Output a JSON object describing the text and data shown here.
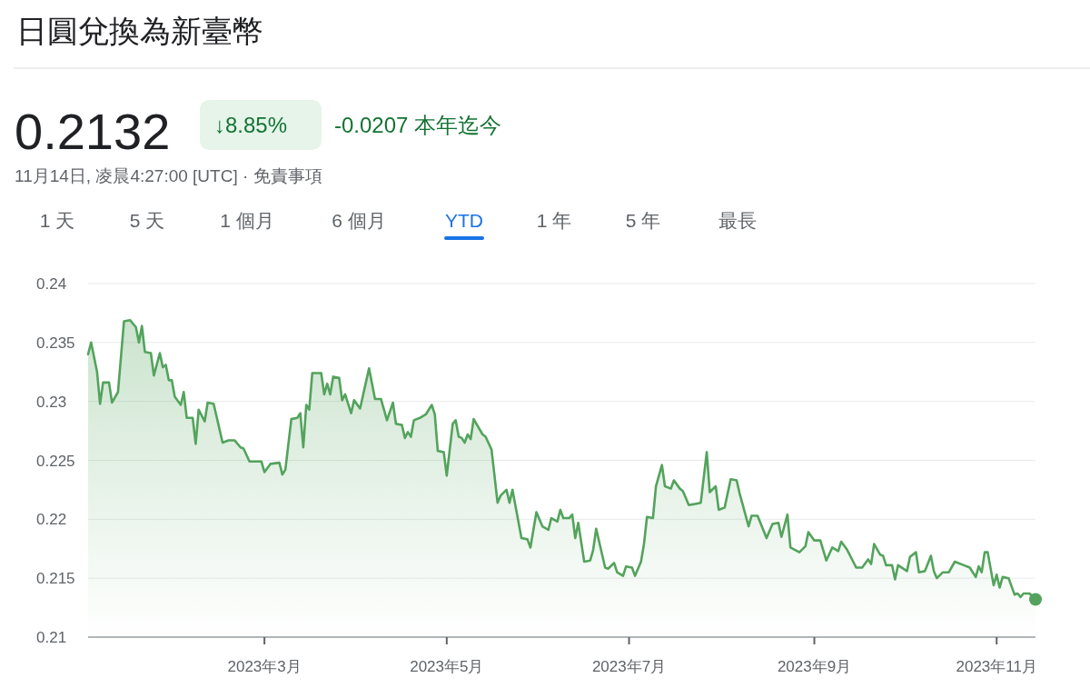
{
  "chart_data": {
    "type": "area",
    "title": "日圓兌換為新臺幣",
    "subtitle": "11月14日, 凌晨4:27:00 [UTC] · 免責事項",
    "annotations": [
      "0.2132",
      "↓8.85%",
      "-0.0207 本年迄今",
      "1 天",
      "5 天",
      "1 個月",
      "6 個月",
      "YTD",
      "1 年",
      "5 年",
      "最長"
    ],
    "xlim": [
      "2023-01-01",
      "2023-11-14"
    ],
    "xticks": [
      {
        "value": "2023-03-01",
        "label": "2023年3月"
      },
      {
        "value": "2023-05-01",
        "label": "2023年5月"
      },
      {
        "value": "2023-07-01",
        "label": "2023年7月"
      },
      {
        "value": "2023-09-01",
        "label": "2023年9月"
      },
      {
        "value": "2023-11-01",
        "label": "2023年11月"
      }
    ],
    "ylim": [
      0.21,
      0.24
    ],
    "yticks": [
      0.21,
      0.215,
      0.22,
      0.225,
      0.23,
      0.235,
      0.24
    ],
    "grid": "y",
    "marker": "none",
    "line_style": "solid",
    "series": [
      {
        "color": "#53a35c",
        "x": [
          "2023-01-01",
          "2023-01-02",
          "2023-01-04",
          "2023-01-05",
          "2023-01-06",
          "2023-01-08",
          "2023-01-09",
          "2023-01-11",
          "2023-01-13",
          "2023-01-15",
          "2023-01-17",
          "2023-01-18",
          "2023-01-19",
          "2023-01-20",
          "2023-01-22",
          "2023-01-23",
          "2023-01-25",
          "2023-01-26",
          "2023-01-27",
          "2023-01-28",
          "2023-01-29",
          "2023-01-30",
          "2023-02-01",
          "2023-02-02",
          "2023-02-03",
          "2023-02-05",
          "2023-02-06",
          "2023-02-07",
          "2023-02-09",
          "2023-02-10",
          "2023-02-12",
          "2023-02-15",
          "2023-02-17",
          "2023-02-19",
          "2023-02-21",
          "2023-02-22",
          "2023-02-24",
          "2023-02-26",
          "2023-02-28",
          "2023-03-01",
          "2023-03-03",
          "2023-03-06",
          "2023-03-07",
          "2023-03-08",
          "2023-03-10",
          "2023-03-12",
          "2023-03-13",
          "2023-03-14",
          "2023-03-15",
          "2023-03-16",
          "2023-03-17",
          "2023-03-20",
          "2023-03-21",
          "2023-03-22",
          "2023-03-23",
          "2023-03-24",
          "2023-03-26",
          "2023-03-27",
          "2023-03-28",
          "2023-03-30",
          "2023-03-31",
          "2023-04-02",
          "2023-04-05",
          "2023-04-07",
          "2023-04-09",
          "2023-04-11",
          "2023-04-13",
          "2023-04-14",
          "2023-04-16",
          "2023-04-17",
          "2023-04-18",
          "2023-04-19",
          "2023-04-20",
          "2023-04-22",
          "2023-04-24",
          "2023-04-26",
          "2023-04-27",
          "2023-04-28",
          "2023-04-30",
          "2023-05-01",
          "2023-05-03",
          "2023-05-04",
          "2023-05-05",
          "2023-05-06",
          "2023-05-07",
          "2023-05-08",
          "2023-05-09",
          "2023-05-10",
          "2023-05-13",
          "2023-05-14",
          "2023-05-16",
          "2023-05-18",
          "2023-05-19",
          "2023-05-21",
          "2023-05-22",
          "2023-05-23",
          "2023-05-26",
          "2023-05-28",
          "2023-05-29",
          "2023-05-31",
          "2023-06-02",
          "2023-06-04",
          "2023-06-05",
          "2023-06-07",
          "2023-06-08",
          "2023-06-09",
          "2023-06-11",
          "2023-06-12",
          "2023-06-13",
          "2023-06-14",
          "2023-06-16",
          "2023-06-18",
          "2023-06-19",
          "2023-06-20",
          "2023-06-23",
          "2023-06-24",
          "2023-06-26",
          "2023-06-27",
          "2023-06-29",
          "2023-06-30",
          "2023-07-02",
          "2023-07-03",
          "2023-07-05",
          "2023-07-06",
          "2023-07-07",
          "2023-07-09",
          "2023-07-10",
          "2023-07-12",
          "2023-07-13",
          "2023-07-15",
          "2023-07-16",
          "2023-07-18",
          "2023-07-19",
          "2023-07-21",
          "2023-07-25",
          "2023-07-27",
          "2023-07-28",
          "2023-07-30",
          "2023-07-31",
          "2023-08-02",
          "2023-08-04",
          "2023-08-06",
          "2023-08-07",
          "2023-08-10",
          "2023-08-11",
          "2023-08-13",
          "2023-08-16",
          "2023-08-18",
          "2023-08-20",
          "2023-08-21",
          "2023-08-23",
          "2023-08-24",
          "2023-08-27",
          "2023-08-29",
          "2023-08-30",
          "2023-09-01",
          "2023-09-03",
          "2023-09-05",
          "2023-09-07",
          "2023-09-09",
          "2023-09-10",
          "2023-09-12",
          "2023-09-14",
          "2023-09-15",
          "2023-09-17",
          "2023-09-19",
          "2023-09-20",
          "2023-09-21",
          "2023-09-23",
          "2023-09-24",
          "2023-09-25",
          "2023-09-27",
          "2023-09-28",
          "2023-09-29",
          "2023-10-02",
          "2023-10-03",
          "2023-10-05",
          "2023-10-06",
          "2023-10-08",
          "2023-10-10",
          "2023-10-11",
          "2023-10-12",
          "2023-10-14",
          "2023-10-16",
          "2023-10-18",
          "2023-10-21",
          "2023-10-23",
          "2023-10-25",
          "2023-10-26",
          "2023-10-27",
          "2023-10-28",
          "2023-10-29",
          "2023-10-31",
          "2023-11-01",
          "2023-11-02",
          "2023-11-03",
          "2023-11-05",
          "2023-11-07",
          "2023-11-08",
          "2023-11-09",
          "2023-11-10",
          "2023-11-12",
          "2023-11-14"
        ],
        "values": [
          0.234,
          0.235,
          0.2325,
          0.2298,
          0.2316,
          0.2316,
          0.2299,
          0.2308,
          0.2368,
          0.2369,
          0.2363,
          0.235,
          0.2364,
          0.2342,
          0.2341,
          0.2322,
          0.2341,
          0.2329,
          0.2331,
          0.2318,
          0.2318,
          0.2304,
          0.2297,
          0.2308,
          0.2286,
          0.2286,
          0.2264,
          0.2293,
          0.2283,
          0.2299,
          0.2298,
          0.2265,
          0.2267,
          0.2267,
          0.2261,
          0.226,
          0.2249,
          0.2249,
          0.2249,
          0.224,
          0.2247,
          0.2248,
          0.2238,
          0.2242,
          0.2285,
          0.2286,
          0.229,
          0.2261,
          0.2297,
          0.2293,
          0.2324,
          0.2324,
          0.2306,
          0.2315,
          0.2306,
          0.2321,
          0.232,
          0.2301,
          0.2306,
          0.229,
          0.2301,
          0.2294,
          0.2328,
          0.2302,
          0.2302,
          0.2284,
          0.2299,
          0.2281,
          0.228,
          0.2269,
          0.2274,
          0.227,
          0.2284,
          0.2286,
          0.2289,
          0.2297,
          0.2289,
          0.2258,
          0.2257,
          0.2237,
          0.2281,
          0.2284,
          0.227,
          0.2269,
          0.2265,
          0.2272,
          0.2268,
          0.2285,
          0.2272,
          0.227,
          0.2259,
          0.2214,
          0.222,
          0.2225,
          0.2214,
          0.2225,
          0.2184,
          0.2183,
          0.2176,
          0.2206,
          0.2194,
          0.2191,
          0.2201,
          0.2198,
          0.2208,
          0.2201,
          0.2201,
          0.2204,
          0.2184,
          0.2197,
          0.2164,
          0.2165,
          0.2174,
          0.2192,
          0.2159,
          0.2158,
          0.2163,
          0.2155,
          0.2152,
          0.216,
          0.2159,
          0.2152,
          0.2164,
          0.2179,
          0.2202,
          0.2201,
          0.2228,
          0.2246,
          0.2228,
          0.2226,
          0.2233,
          0.2226,
          0.2224,
          0.2212,
          0.2214,
          0.2257,
          0.2223,
          0.2228,
          0.2208,
          0.221,
          0.2234,
          0.2233,
          0.2222,
          0.2194,
          0.2203,
          0.2203,
          0.2184,
          0.2196,
          0.2197,
          0.2185,
          0.2204,
          0.2176,
          0.2172,
          0.2177,
          0.2189,
          0.2182,
          0.2182,
          0.2165,
          0.2176,
          0.2173,
          0.2181,
          0.2174,
          0.2164,
          0.2159,
          0.2159,
          0.2166,
          0.2162,
          0.2179,
          0.217,
          0.2169,
          0.2161,
          0.2161,
          0.2149,
          0.2161,
          0.2156,
          0.2168,
          0.2172,
          0.2155,
          0.2156,
          0.2169,
          0.2156,
          0.215,
          0.2155,
          0.2155,
          0.2164,
          0.2161,
          0.2159,
          0.2151,
          0.216,
          0.2155,
          0.2172,
          0.2172,
          0.2144,
          0.2153,
          0.2142,
          0.2151,
          0.215,
          0.2136,
          0.2137,
          0.2134,
          0.2137,
          0.2137,
          0.2132
        ]
      }
    ]
  }
}
